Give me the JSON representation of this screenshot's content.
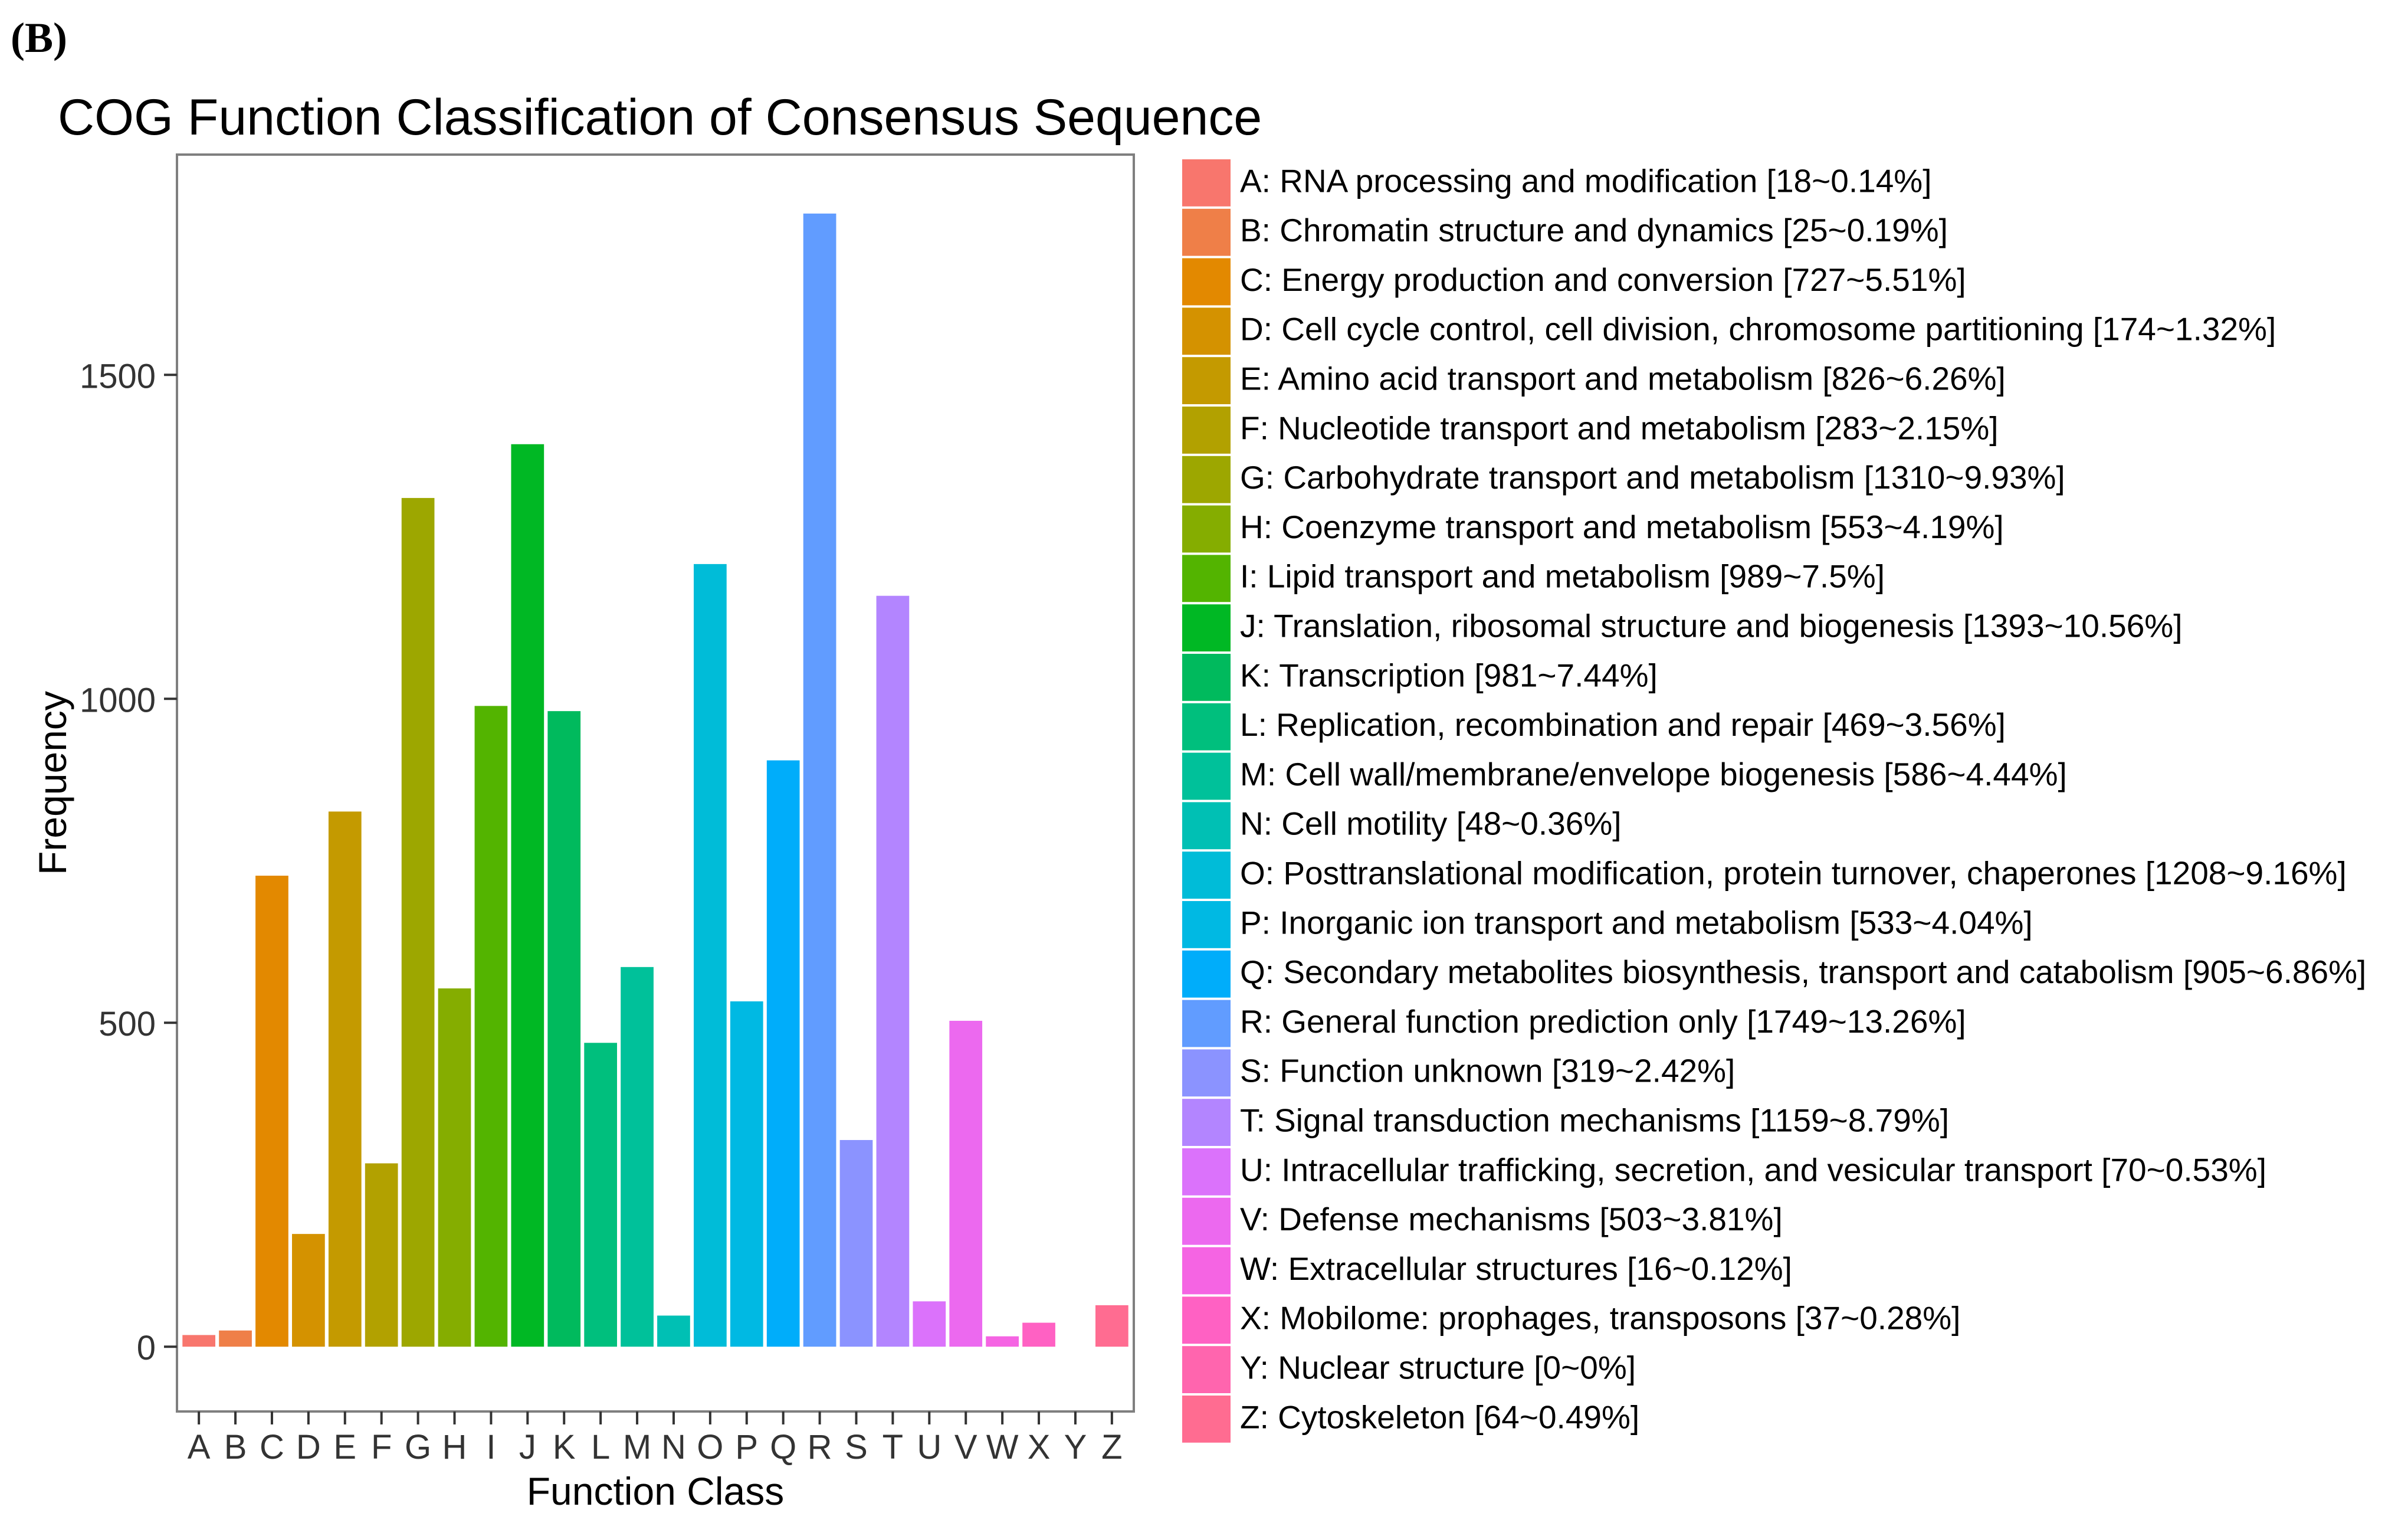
{
  "panel_label": "(B)",
  "chart_data": {
    "type": "bar",
    "title": "COG Function Classification of Consensus Sequence",
    "xlabel": "Function Class",
    "ylabel": "Frequency",
    "ylim": [
      -100,
      1840
    ],
    "yticks": [
      0,
      500,
      1000,
      1500
    ],
    "grid": false,
    "legend_position": "right",
    "categories": [
      "A",
      "B",
      "C",
      "D",
      "E",
      "F",
      "G",
      "H",
      "I",
      "J",
      "K",
      "L",
      "M",
      "N",
      "O",
      "P",
      "Q",
      "R",
      "S",
      "T",
      "U",
      "V",
      "W",
      "X",
      "Y",
      "Z"
    ],
    "values": [
      18,
      25,
      727,
      174,
      826,
      283,
      1310,
      553,
      989,
      1393,
      981,
      469,
      586,
      48,
      1208,
      533,
      905,
      1749,
      319,
      1159,
      70,
      503,
      16,
      37,
      0,
      64
    ],
    "colors": [
      "#F8766D",
      "#EF7F48",
      "#E38900",
      "#D49200",
      "#C49A00",
      "#B2A100",
      "#9DA700",
      "#85AD00",
      "#53B400",
      "#00B824",
      "#00BA5D",
      "#00BF7D",
      "#00C19A",
      "#00C0B4",
      "#00BCD8",
      "#00B9E3",
      "#00ADFA",
      "#619CFF",
      "#8B93FF",
      "#B385FF",
      "#DB72FB",
      "#EC69EF",
      "#F564E3",
      "#FF61C3",
      "#FF65AE",
      "#FF6C91"
    ],
    "legend": [
      "A: RNA processing and modification [18~0.14%]",
      "B: Chromatin structure and dynamics [25~0.19%]",
      "C: Energy production and conversion [727~5.51%]",
      "D: Cell cycle control, cell division, chromosome partitioning [174~1.32%]",
      "E: Amino acid transport and metabolism [826~6.26%]",
      "F: Nucleotide transport and metabolism [283~2.15%]",
      "G: Carbohydrate transport and metabolism [1310~9.93%]",
      "H: Coenzyme transport and metabolism [553~4.19%]",
      "I: Lipid transport and metabolism [989~7.5%]",
      "J: Translation, ribosomal structure and biogenesis [1393~10.56%]",
      "K: Transcription [981~7.44%]",
      "L: Replication, recombination and repair [469~3.56%]",
      "M: Cell wall/membrane/envelope biogenesis [586~4.44%]",
      "N: Cell motility [48~0.36%]",
      "O: Posttranslational modification, protein turnover, chaperones [1208~9.16%]",
      "P: Inorganic ion transport and metabolism [533~4.04%]",
      "Q: Secondary metabolites biosynthesis, transport and catabolism [905~6.86%]",
      "R: General function prediction only [1749~13.26%]",
      "S: Function unknown [319~2.42%]",
      "T: Signal transduction mechanisms [1159~8.79%]",
      "U: Intracellular trafficking, secretion, and vesicular transport [70~0.53%]",
      "V: Defense mechanisms [503~3.81%]",
      "W: Extracellular structures [16~0.12%]",
      "X: Mobilome: prophages, transposons [37~0.28%]",
      "Y: Nuclear structure [0~0%]",
      "Z: Cytoskeleton [64~0.49%]"
    ]
  }
}
